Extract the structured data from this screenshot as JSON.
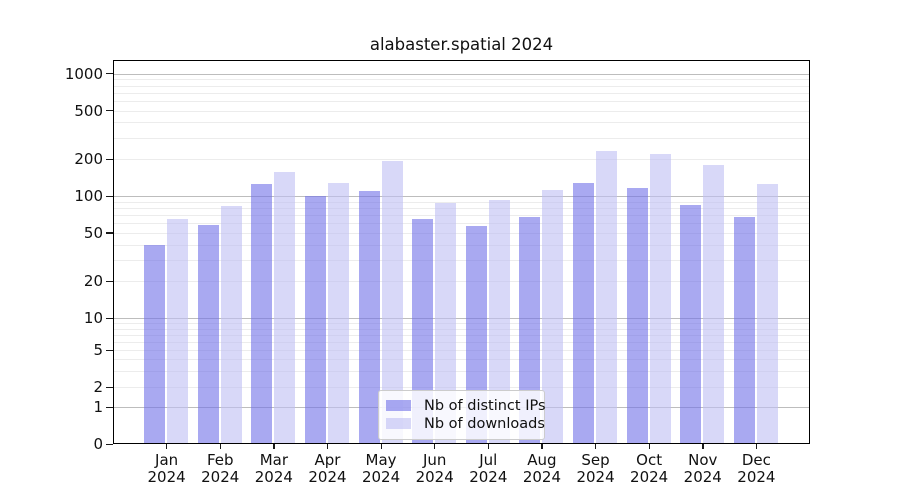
{
  "chart_data": {
    "type": "bar",
    "title": "alabaster.spatial 2024",
    "months": [
      "Jan",
      "Feb",
      "Mar",
      "Apr",
      "May",
      "Jun",
      "Jul",
      "Aug",
      "Sep",
      "Oct",
      "Nov",
      "Dec"
    ],
    "year": "2024",
    "series": [
      {
        "name": "Nb of distinct IPs",
        "color": "#a9a9f1",
        "values": [
          40,
          58,
          125,
          100,
          110,
          65,
          57,
          67,
          128,
          116,
          85,
          67
        ]
      },
      {
        "name": "Nb of downloads",
        "color": "#d8d8f8",
        "values": [
          65,
          83,
          158,
          127,
          195,
          87,
          93,
          112,
          235,
          222,
          180,
          125
        ]
      }
    ],
    "y_ticks": [
      0,
      1,
      2,
      5,
      10,
      20,
      50,
      100,
      200,
      500,
      1000
    ],
    "ylim": [
      0,
      1255
    ],
    "yscale": "log",
    "grid": "horizontal major and minor gridlines",
    "legend_position": "lower center"
  }
}
